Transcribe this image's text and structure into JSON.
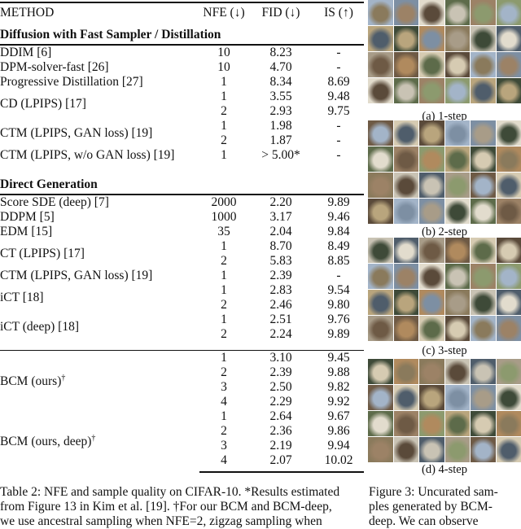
{
  "table": {
    "headers": [
      "METHOD",
      "NFE (↓)",
      "FID (↓)",
      "IS (↑)"
    ],
    "sections": [
      {
        "title": "Diffusion with Fast Sampler / Distillation",
        "groups": [
          {
            "method": "DDIM [6]",
            "rows": [
              [
                "10",
                "8.23",
                "-"
              ]
            ]
          },
          {
            "method": "DPM-solver-fast [26]",
            "rows": [
              [
                "10",
                "4.70",
                "-"
              ]
            ]
          },
          {
            "method": "Progressive Distillation [27]",
            "rows": [
              [
                "1",
                "8.34",
                "8.69"
              ]
            ]
          },
          {
            "method": "CD (LPIPS) [17]",
            "rows": [
              [
                "1",
                "3.55",
                "9.48"
              ],
              [
                "2",
                "2.93",
                "9.75"
              ]
            ]
          },
          {
            "method": "CTM (LPIPS, GAN loss) [19]",
            "rows": [
              [
                "1",
                "1.98",
                "-"
              ],
              [
                "2",
                "1.87",
                "-"
              ]
            ]
          },
          {
            "method": "CTM (LPIPS, w/o GAN loss) [19]",
            "rows": [
              [
                "1",
                "> 5.00*",
                "-"
              ]
            ]
          }
        ]
      },
      {
        "title": "Direct Generation",
        "groups": [
          {
            "method": "Score SDE (deep) [7]",
            "rows": [
              [
                "2000",
                "2.20",
                "9.89"
              ]
            ]
          },
          {
            "method": "DDPM [5]",
            "rows": [
              [
                "1000",
                "3.17",
                "9.46"
              ]
            ]
          },
          {
            "method": "EDM [15]",
            "rows": [
              [
                "35",
                "2.04",
                "9.84"
              ]
            ]
          },
          {
            "method": "CT (LPIPS) [17]",
            "rows": [
              [
                "1",
                "8.70",
                "8.49"
              ],
              [
                "2",
                "5.83",
                "8.85"
              ]
            ]
          },
          {
            "method": "CTM (LPIPS, GAN loss) [19]",
            "rows": [
              [
                "1",
                "2.39",
                "-"
              ]
            ]
          },
          {
            "method": "iCT [18]",
            "rows": [
              [
                "1",
                "2.83",
                "9.54"
              ],
              [
                "2",
                "2.46",
                "9.80"
              ]
            ]
          },
          {
            "method": "iCT (deep) [18]",
            "rows": [
              [
                "1",
                "2.51",
                "9.76"
              ],
              [
                "2",
                "2.24",
                "9.89"
              ]
            ]
          }
        ]
      }
    ],
    "ours": [
      {
        "method": "BCM (ours)",
        "mark": "†",
        "rows": [
          [
            "1",
            "3.10",
            "9.45"
          ],
          [
            "2",
            "2.39",
            "9.88"
          ],
          [
            "3",
            "2.50",
            "9.82"
          ],
          [
            "4",
            "2.29",
            "9.92"
          ]
        ]
      },
      {
        "method": "BCM (ours, deep)",
        "mark": "†",
        "rows": [
          [
            "1",
            "2.64",
            "9.67"
          ],
          [
            "2",
            "2.36",
            "9.86"
          ],
          [
            "3",
            "2.19",
            "9.94"
          ],
          [
            "4",
            "2.07",
            "10.02"
          ]
        ]
      }
    ]
  },
  "table_caption": {
    "line1": "Table 2: NFE and sample quality on CIFAR-10. *Results estimated",
    "line2": "from Figure 13 in Kim et al. [19]. †For our BCM and BCM-deep,",
    "line3": "we use ancestral sampling when NFE=2, zigzag sampling when"
  },
  "figure": {
    "subcaptions": [
      "(a) 1-step",
      "(b) 2-step",
      "(c) 3-step",
      "(d) 4-step"
    ],
    "caption": {
      "line1": "Figure 3: Uncurated sam-",
      "line2": "ples generated by BCM-",
      "line3": "deep. We can observe"
    }
  }
}
